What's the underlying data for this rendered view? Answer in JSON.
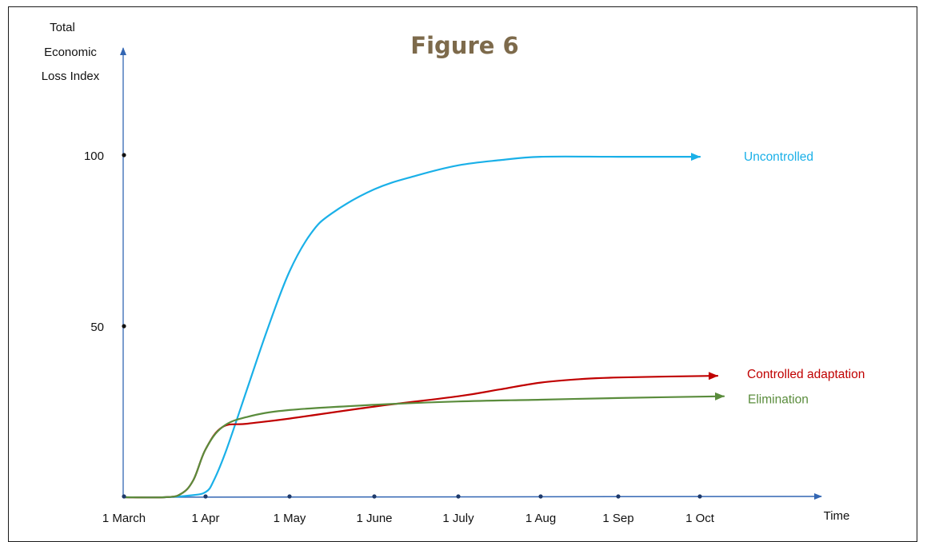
{
  "chart_data": {
    "type": "line",
    "title": "Figure 6",
    "title_color": "#7d6a4b",
    "ylabel": [
      "Total",
      "Economic",
      "Loss Index"
    ],
    "xlabel": "Time",
    "x_ticks": [
      "1 March",
      "1 Apr",
      "1 May",
      "1 June",
      "1 July",
      "1 Aug",
      "1 Sep",
      "1 Oct"
    ],
    "y_ticks": [
      50,
      100
    ],
    "ylim": [
      0,
      100
    ],
    "grid": false,
    "legend": "inline labels at line ends",
    "series": [
      {
        "name": "Uncontrolled",
        "color": "#1ab0e8",
        "x": [
          0,
          0.5,
          0.8,
          1.0,
          1.1,
          1.25,
          1.5,
          1.75,
          2.0,
          2.25,
          2.5,
          3.0,
          3.5,
          4.0,
          4.5,
          5.0,
          6.0,
          7.0
        ],
        "y": [
          0,
          0,
          0.5,
          1.5,
          5,
          14,
          32,
          50,
          66,
          77,
          83,
          90,
          94,
          97,
          98.5,
          99.5,
          99.5,
          99.5
        ]
      },
      {
        "name": "Controlled adaptation",
        "color": "#c00000",
        "x": [
          0,
          0.5,
          0.7,
          0.85,
          1.0,
          1.2,
          1.5,
          2.0,
          3.0,
          4.0,
          4.5,
          5.0,
          5.5,
          6.0,
          7.0
        ],
        "y": [
          0,
          0,
          1,
          5,
          14,
          20.5,
          21.5,
          23,
          26.5,
          29.5,
          31.5,
          33.5,
          34.5,
          35,
          35.5
        ]
      },
      {
        "name": "Elimination",
        "color": "#5a8c3c",
        "x": [
          0,
          0.5,
          0.7,
          0.85,
          1.0,
          1.2,
          1.5,
          2.0,
          3.0,
          4.0,
          5.0,
          6.0,
          7.0
        ],
        "y": [
          0,
          0,
          1,
          5,
          14,
          20.5,
          23.5,
          25.5,
          27,
          28,
          28.5,
          29,
          29.5
        ]
      }
    ]
  }
}
